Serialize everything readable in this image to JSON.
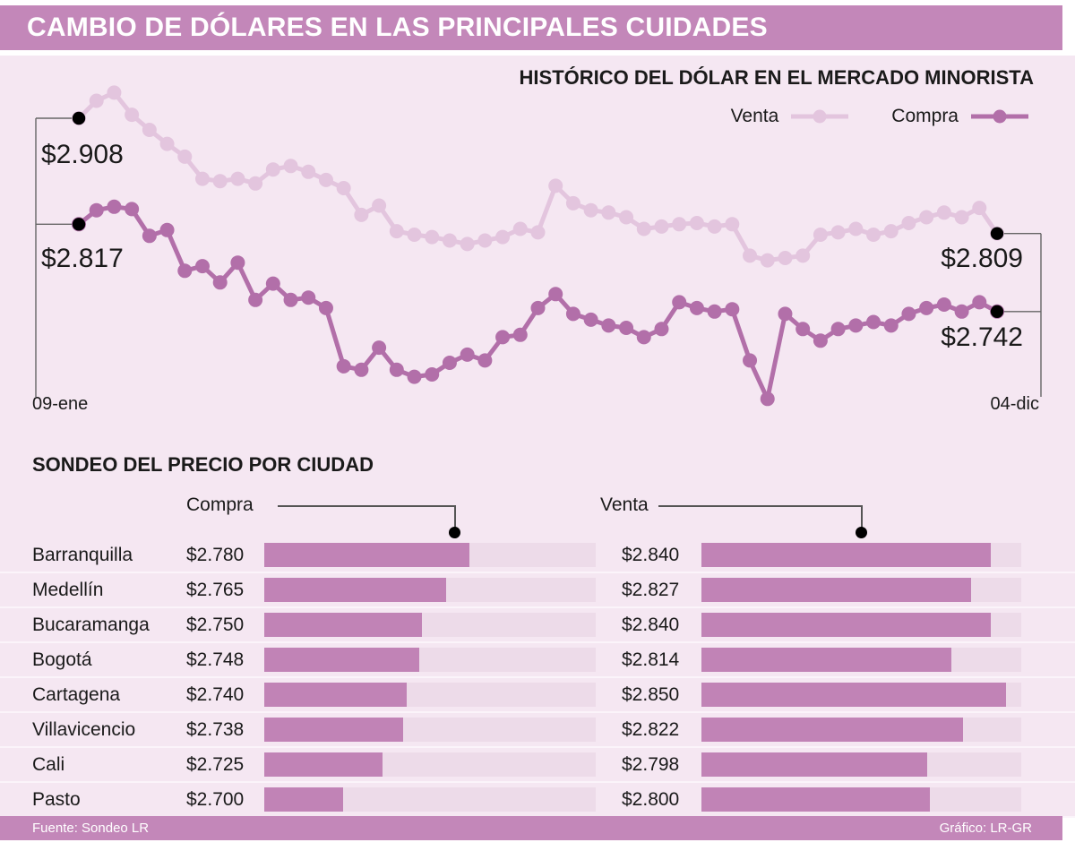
{
  "header": {
    "title": "CAMBIO DE DÓLARES EN LAS PRINCIPALES CUIDADES"
  },
  "colors": {
    "band_purple": "#c387b9",
    "background_pink": "#f5e7f2",
    "venta_line": "#e3c5de",
    "compra_line": "#b26fa9",
    "bar_fill": "#c183b6",
    "bar_track": "#eddbe9",
    "marker_black": "#000000",
    "text_dark": "#1a1a1a"
  },
  "chart_data": {
    "type": "line",
    "title": "HISTÓRICO DEL DÓLAR EN EL MERCADO MINORISTA",
    "x_range_labels": [
      "09-ene",
      "04-dic"
    ],
    "y_domain": [
      2.64,
      2.95
    ],
    "grid": false,
    "legend_position": "top-right",
    "series": [
      {
        "name": "Venta",
        "color": "#e3c5de",
        "start_label": "$2.908",
        "end_label": "$2.809",
        "values": [
          2.908,
          2.923,
          2.93,
          2.911,
          2.898,
          2.886,
          2.875,
          2.856,
          2.854,
          2.856,
          2.852,
          2.864,
          2.867,
          2.862,
          2.855,
          2.848,
          2.825,
          2.833,
          2.811,
          2.808,
          2.806,
          2.803,
          2.8,
          2.803,
          2.806,
          2.813,
          2.81,
          2.85,
          2.835,
          2.829,
          2.827,
          2.823,
          2.813,
          2.815,
          2.817,
          2.818,
          2.815,
          2.817,
          2.79,
          2.786,
          2.788,
          2.79,
          2.808,
          2.81,
          2.813,
          2.808,
          2.811,
          2.818,
          2.823,
          2.827,
          2.823,
          2.831,
          2.809
        ]
      },
      {
        "name": "Compra",
        "color": "#b26fa9",
        "start_label": "$2.817",
        "end_label": "$2.742",
        "values": [
          2.817,
          2.829,
          2.832,
          2.83,
          2.807,
          2.812,
          2.777,
          2.781,
          2.767,
          2.784,
          2.752,
          2.766,
          2.752,
          2.754,
          2.745,
          2.695,
          2.692,
          2.711,
          2.692,
          2.686,
          2.688,
          2.698,
          2.705,
          2.7,
          2.72,
          2.722,
          2.745,
          2.757,
          2.74,
          2.735,
          2.73,
          2.728,
          2.72,
          2.727,
          2.75,
          2.745,
          2.742,
          2.744,
          2.7,
          2.667,
          2.74,
          2.727,
          2.717,
          2.727,
          2.73,
          2.733,
          2.73,
          2.74,
          2.745,
          2.748,
          2.742,
          2.75,
          2.742
        ]
      }
    ]
  },
  "table": {
    "title": "SONDEO DEL PRECIO POR CIUDAD",
    "columns": {
      "compra": "Compra",
      "venta": "Venta"
    },
    "bar_domain": [
      2.65,
      2.86
    ],
    "rows": [
      {
        "city": "Barranquilla",
        "compra_label": "$2.780",
        "compra": 2.78,
        "venta_label": "$2.840",
        "venta": 2.84
      },
      {
        "city": "Medellín",
        "compra_label": "$2.765",
        "compra": 2.765,
        "venta_label": "$2.827",
        "venta": 2.827
      },
      {
        "city": "Bucaramanga",
        "compra_label": "$2.750",
        "compra": 2.75,
        "venta_label": "$2.840",
        "venta": 2.84
      },
      {
        "city": "Bogotá",
        "compra_label": "$2.748",
        "compra": 2.748,
        "venta_label": "$2.814",
        "venta": 2.814
      },
      {
        "city": "Cartagena",
        "compra_label": "$2.740",
        "compra": 2.74,
        "venta_label": "$2.850",
        "venta": 2.85
      },
      {
        "city": "Villavicencio",
        "compra_label": "$2.738",
        "compra": 2.738,
        "venta_label": "$2.822",
        "venta": 2.822
      },
      {
        "city": "Cali",
        "compra_label": "$2.725",
        "compra": 2.725,
        "venta_label": "$2.798",
        "venta": 2.798
      },
      {
        "city": "Pasto",
        "compra_label": "$2.700",
        "compra": 2.7,
        "venta_label": "$2.800",
        "venta": 2.8
      }
    ]
  },
  "footer": {
    "source": "Fuente: Sondeo LR",
    "credit": "Gráfico: LR-GR"
  }
}
